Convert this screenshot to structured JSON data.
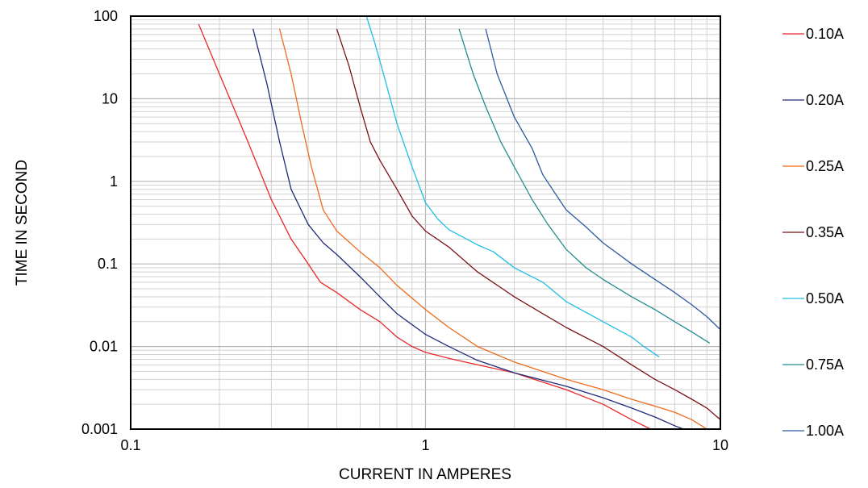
{
  "chart_data": {
    "type": "line",
    "title": "",
    "xlabel": "CURRENT IN AMPERES",
    "ylabel": "TIME IN SECOND",
    "x_scale": "log",
    "y_scale": "log",
    "xlim": [
      0.1,
      10
    ],
    "ylim": [
      0.001,
      100
    ],
    "grid": true,
    "legend_position": "right",
    "x_ticks": [
      {
        "value": 0.1,
        "label": "0.1"
      },
      {
        "value": 1,
        "label": "1"
      },
      {
        "value": 10,
        "label": "10"
      }
    ],
    "y_ticks": [
      {
        "value": 100,
        "label": "100"
      },
      {
        "value": 10,
        "label": "10"
      },
      {
        "value": 1,
        "label": "1"
      },
      {
        "value": 0.1,
        "label": "0.1"
      },
      {
        "value": 0.01,
        "label": "0.01"
      },
      {
        "value": 0.001,
        "label": "0.001"
      }
    ],
    "series": [
      {
        "name": "0.10A",
        "color": "#e8282a",
        "points": [
          [
            0.17,
            80
          ],
          [
            0.2,
            20
          ],
          [
            0.25,
            3
          ],
          [
            0.3,
            0.6
          ],
          [
            0.35,
            0.2
          ],
          [
            0.4,
            0.1
          ],
          [
            0.44,
            0.06
          ],
          [
            0.5,
            0.045
          ],
          [
            0.6,
            0.028
          ],
          [
            0.7,
            0.02
          ],
          [
            0.8,
            0.013
          ],
          [
            0.9,
            0.01
          ],
          [
            1.0,
            0.0085
          ],
          [
            1.2,
            0.0072
          ],
          [
            1.5,
            0.006
          ],
          [
            2.0,
            0.0048
          ],
          [
            3.0,
            0.003
          ],
          [
            4.0,
            0.002
          ],
          [
            5.0,
            0.0013
          ],
          [
            5.8,
            0.001
          ]
        ]
      },
      {
        "name": "0.20A",
        "color": "#1e2a78",
        "points": [
          [
            0.26,
            70
          ],
          [
            0.29,
            15
          ],
          [
            0.32,
            3
          ],
          [
            0.35,
            0.8
          ],
          [
            0.4,
            0.3
          ],
          [
            0.45,
            0.18
          ],
          [
            0.5,
            0.13
          ],
          [
            0.6,
            0.07
          ],
          [
            0.7,
            0.04
          ],
          [
            0.8,
            0.025
          ],
          [
            1.0,
            0.014
          ],
          [
            1.2,
            0.01
          ],
          [
            1.5,
            0.0068
          ],
          [
            2.0,
            0.0048
          ],
          [
            3.0,
            0.0033
          ],
          [
            4.0,
            0.0024
          ],
          [
            5.0,
            0.0018
          ],
          [
            6.0,
            0.0014
          ],
          [
            7.0,
            0.0011
          ],
          [
            7.5,
            0.001
          ]
        ]
      },
      {
        "name": "0.25A",
        "color": "#f06a1c",
        "points": [
          [
            0.32,
            70
          ],
          [
            0.35,
            20
          ],
          [
            0.38,
            5
          ],
          [
            0.41,
            1.5
          ],
          [
            0.45,
            0.45
          ],
          [
            0.5,
            0.25
          ],
          [
            0.6,
            0.14
          ],
          [
            0.7,
            0.09
          ],
          [
            0.8,
            0.055
          ],
          [
            1.0,
            0.028
          ],
          [
            1.2,
            0.017
          ],
          [
            1.5,
            0.01
          ],
          [
            2.0,
            0.0065
          ],
          [
            3.0,
            0.004
          ],
          [
            4.0,
            0.003
          ],
          [
            5.0,
            0.0023
          ],
          [
            6.0,
            0.0019
          ],
          [
            7.0,
            0.0016
          ],
          [
            8.0,
            0.0013
          ],
          [
            9.0,
            0.001
          ]
        ]
      },
      {
        "name": "0.35A",
        "color": "#7a1216",
        "points": [
          [
            0.5,
            70
          ],
          [
            0.55,
            25
          ],
          [
            0.6,
            8
          ],
          [
            0.65,
            3
          ],
          [
            0.7,
            1.8
          ],
          [
            0.8,
            0.8
          ],
          [
            0.9,
            0.38
          ],
          [
            1.0,
            0.25
          ],
          [
            1.2,
            0.16
          ],
          [
            1.5,
            0.08
          ],
          [
            2.0,
            0.04
          ],
          [
            2.5,
            0.025
          ],
          [
            3.0,
            0.017
          ],
          [
            4.0,
            0.01
          ],
          [
            5.0,
            0.006
          ],
          [
            6.0,
            0.004
          ],
          [
            7.0,
            0.003
          ],
          [
            8.0,
            0.0023
          ],
          [
            9.0,
            0.0018
          ],
          [
            10,
            0.0013
          ]
        ]
      },
      {
        "name": "0.50A",
        "color": "#1fbde6",
        "points": [
          [
            0.63,
            100
          ],
          [
            0.67,
            50
          ],
          [
            0.72,
            20
          ],
          [
            0.8,
            5
          ],
          [
            0.9,
            1.5
          ],
          [
            1.0,
            0.55
          ],
          [
            1.1,
            0.35
          ],
          [
            1.2,
            0.26
          ],
          [
            1.5,
            0.17
          ],
          [
            1.7,
            0.14
          ],
          [
            2.0,
            0.09
          ],
          [
            2.5,
            0.06
          ],
          [
            3.0,
            0.035
          ],
          [
            4.0,
            0.02
          ],
          [
            5.0,
            0.013
          ],
          [
            5.5,
            0.01
          ],
          [
            6.2,
            0.0075
          ]
        ]
      },
      {
        "name": "0.75A",
        "color": "#238c8c",
        "points": [
          [
            1.3,
            70
          ],
          [
            1.45,
            20
          ],
          [
            1.6,
            8
          ],
          [
            1.8,
            3
          ],
          [
            2.0,
            1.5
          ],
          [
            2.3,
            0.6
          ],
          [
            2.6,
            0.3
          ],
          [
            3.0,
            0.15
          ],
          [
            3.5,
            0.09
          ],
          [
            4.0,
            0.065
          ],
          [
            5.0,
            0.04
          ],
          [
            6.0,
            0.028
          ],
          [
            7.0,
            0.02
          ],
          [
            8.0,
            0.015
          ],
          [
            9.2,
            0.011
          ]
        ]
      },
      {
        "name": "1.00A",
        "color": "#2a5aa0",
        "points": [
          [
            1.6,
            70
          ],
          [
            1.75,
            20
          ],
          [
            2.0,
            6
          ],
          [
            2.3,
            2.5
          ],
          [
            2.5,
            1.2
          ],
          [
            3.0,
            0.45
          ],
          [
            3.5,
            0.28
          ],
          [
            4.0,
            0.18
          ],
          [
            5.0,
            0.1
          ],
          [
            6.0,
            0.065
          ],
          [
            7.0,
            0.045
          ],
          [
            8.0,
            0.032
          ],
          [
            9.0,
            0.023
          ],
          [
            10,
            0.016
          ]
        ]
      }
    ]
  }
}
